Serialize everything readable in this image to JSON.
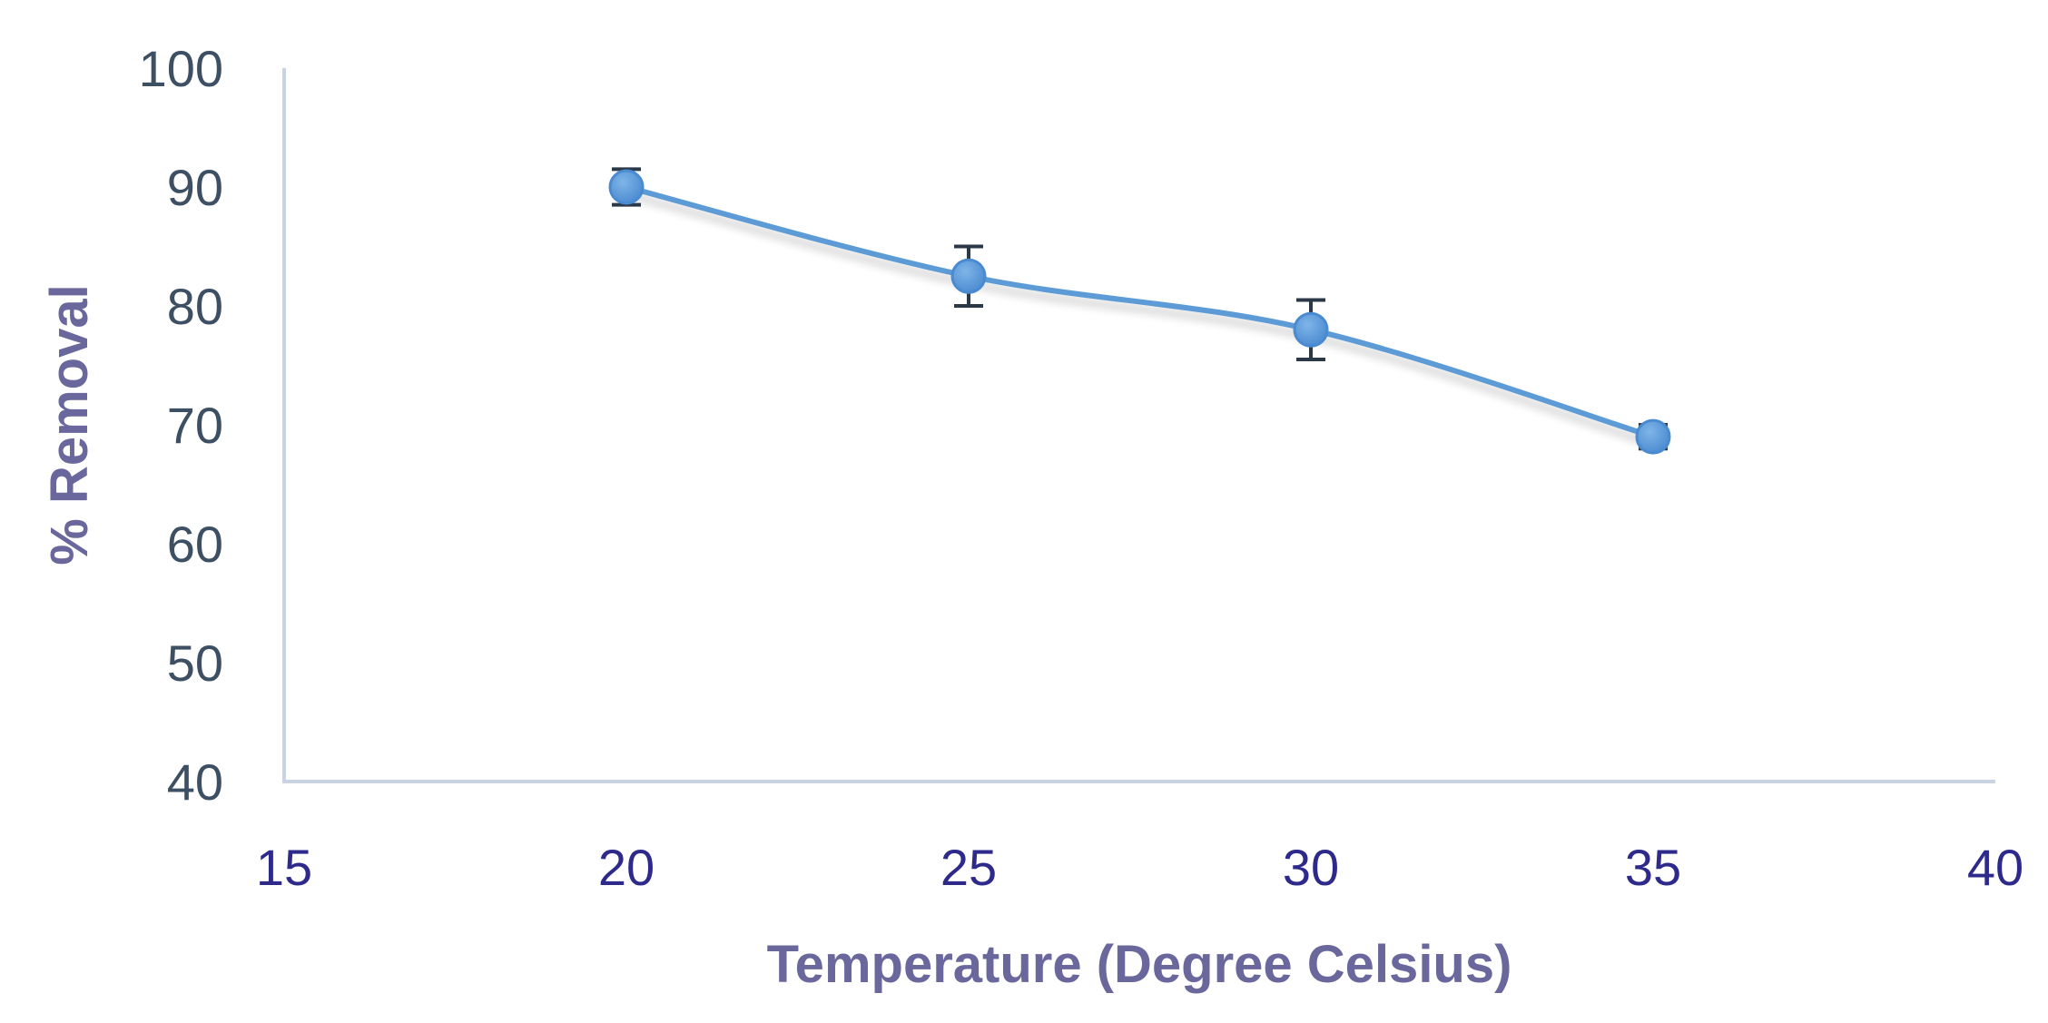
{
  "chart_data": {
    "type": "line",
    "title": "",
    "xlabel": "Temperature (Degree Celsius)",
    "ylabel": "% Removal",
    "xlim": [
      15,
      40
    ],
    "ylim": [
      40,
      100
    ],
    "x_ticks": [
      "15",
      "20",
      "25",
      "30",
      "35",
      "40"
    ],
    "y_ticks": [
      "40",
      "50",
      "60",
      "70",
      "80",
      "90",
      "100"
    ],
    "smooth": true,
    "grid": false,
    "legend": "none",
    "series": [
      {
        "color": "#5b9bd5",
        "points": [
          {
            "x": 20,
            "y": 90.0,
            "err": 1.5
          },
          {
            "x": 25,
            "y": 82.5,
            "err": 2.5
          },
          {
            "x": 30,
            "y": 78.0,
            "err": 2.5
          },
          {
            "x": 35,
            "y": 69.0,
            "err": 1.0
          }
        ]
      }
    ],
    "colors": {
      "axis_line": "#c9d3e1",
      "errorbar": "#2b3848",
      "marker_edge": "#4a8ad0"
    }
  }
}
